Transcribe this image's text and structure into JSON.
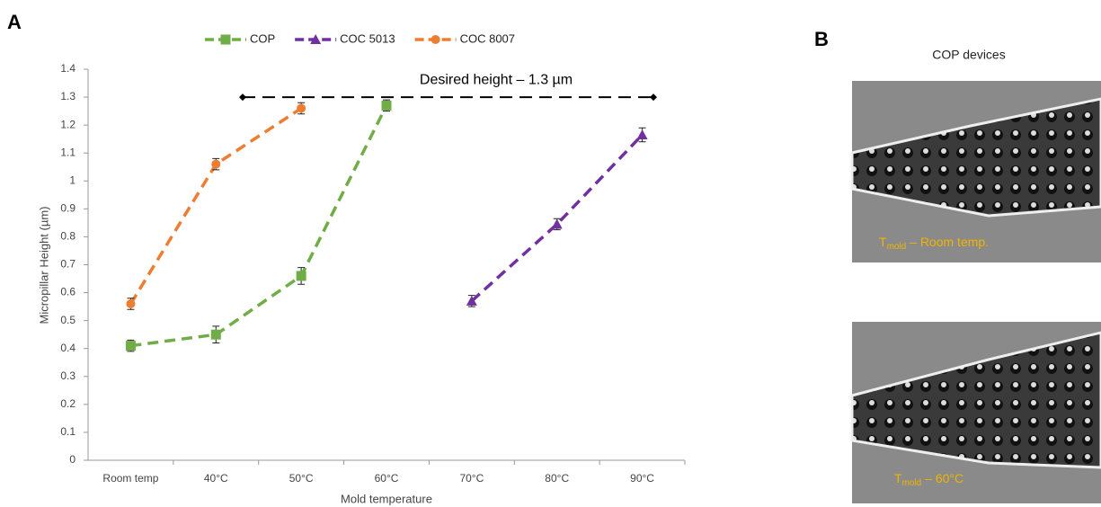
{
  "chart_data": {
    "type": "line",
    "panel_label": "A",
    "x_label": "Mold temperature",
    "y_label": "Micropillar Height (µm)",
    "categories": [
      "Room temp",
      "40°C",
      "50°C",
      "60°C",
      "70°C",
      "80°C",
      "90°C"
    ],
    "series": [
      {
        "name": "COP",
        "color": "#70ad47",
        "marker": "square",
        "values": [
          0.41,
          0.45,
          0.66,
          1.27,
          null,
          null,
          null
        ],
        "errors": [
          0.02,
          0.03,
          0.03,
          0.02,
          null,
          null,
          null
        ]
      },
      {
        "name": "COC 5013",
        "color": "#7030a0",
        "marker": "triangle",
        "values": [
          null,
          null,
          null,
          null,
          0.57,
          0.845,
          1.165
        ],
        "errors": [
          null,
          null,
          null,
          null,
          0.02,
          0.02,
          0.025
        ]
      },
      {
        "name": "COC 8007",
        "color": "#ed7d31",
        "marker": "circle",
        "values": [
          0.56,
          1.06,
          1.26,
          null,
          null,
          null,
          null
        ],
        "errors": [
          0.02,
          0.02,
          0.02,
          null,
          null,
          null,
          null
        ]
      }
    ],
    "reference_line": {
      "value": 1.3,
      "label": "Desired height – 1.3 µm",
      "color": "#000000"
    },
    "ylim": [
      0,
      1.4
    ],
    "yticks": [
      0,
      0.1,
      0.2,
      0.3,
      0.4,
      0.5,
      0.6,
      0.7,
      0.8,
      0.9,
      1,
      1.1,
      1.2,
      1.3,
      1.4
    ],
    "grid": false,
    "legend": "top"
  },
  "panel_b": {
    "label": "B",
    "title": "COP devices",
    "images": [
      {
        "caption_main": "T",
        "caption_sub": "mold",
        "caption_rest": " – Room temp."
      },
      {
        "caption_main": "T",
        "caption_sub": "mold",
        "caption_rest": " – 60°C"
      }
    ]
  }
}
